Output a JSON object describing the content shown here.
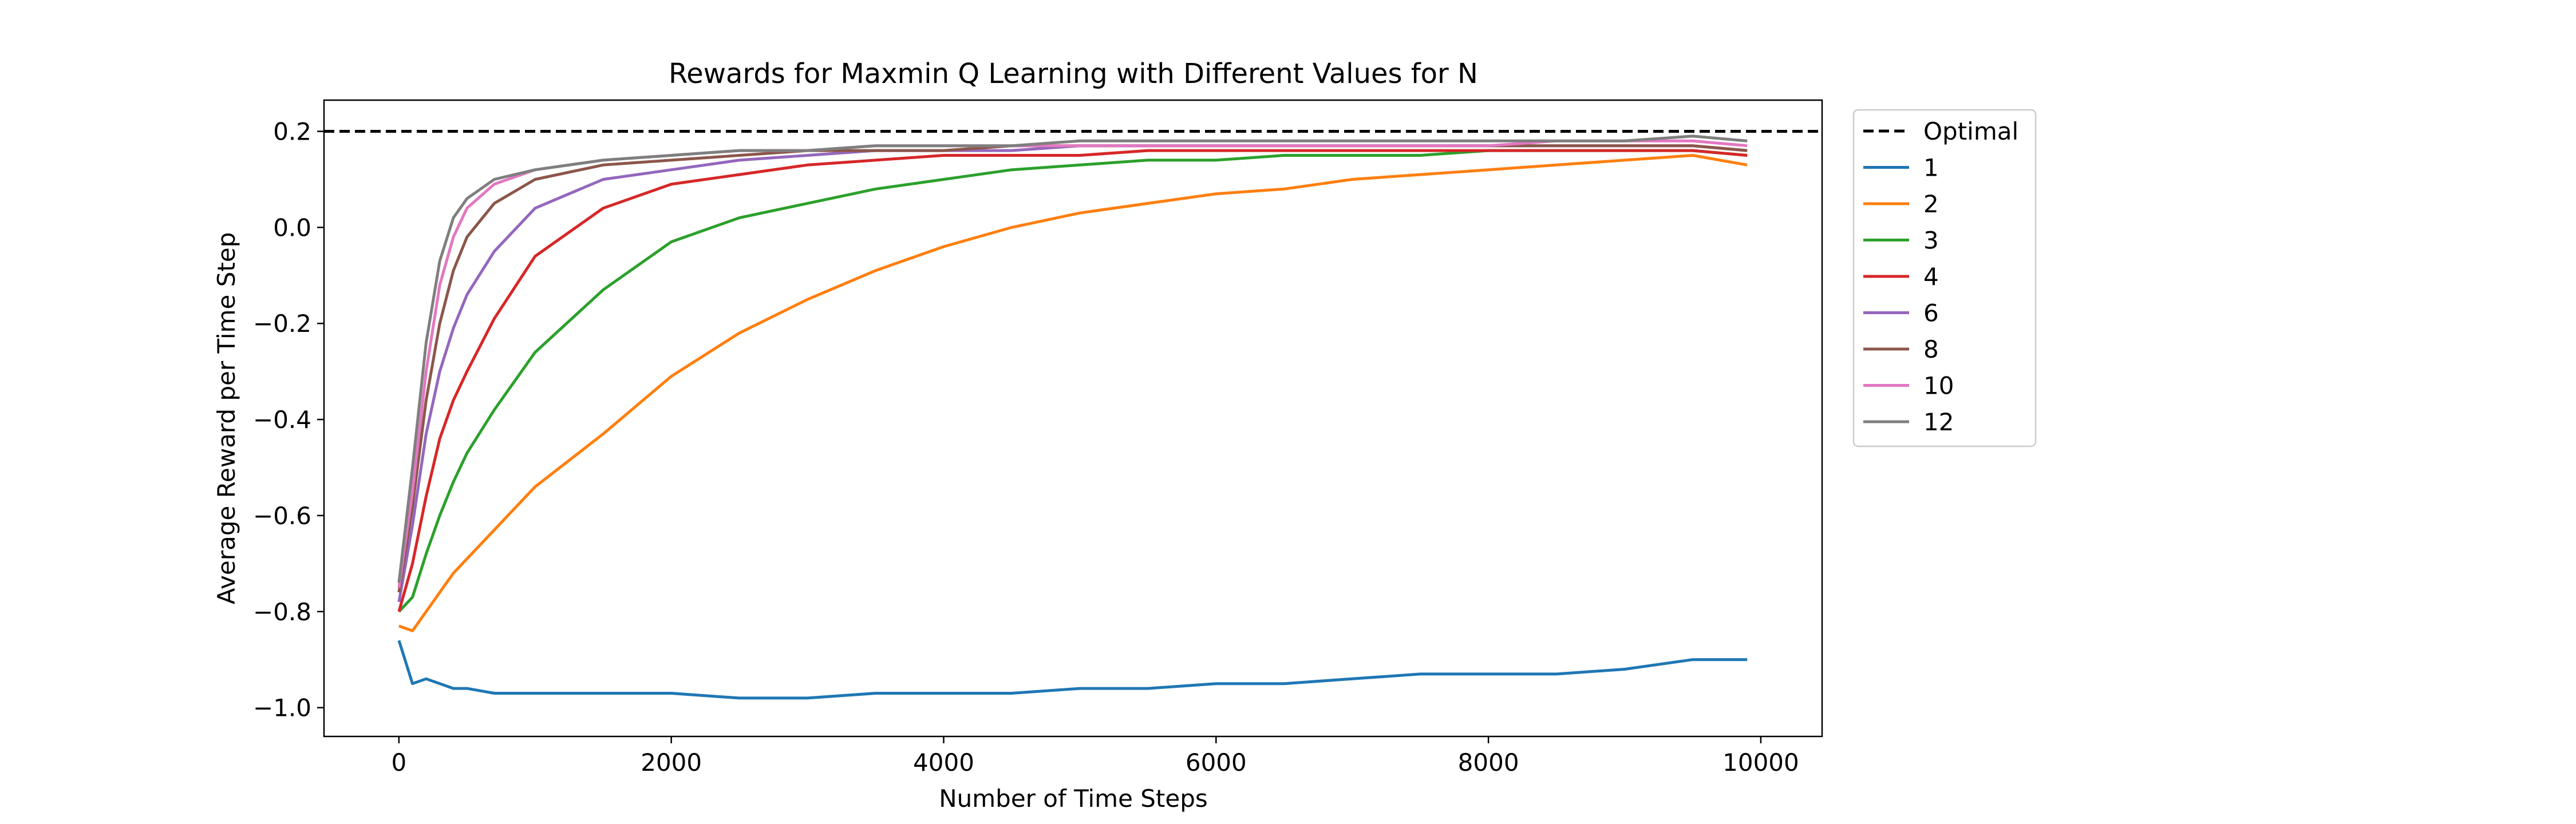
{
  "chart_data": {
    "type": "line",
    "title": "Rewards for Maxmin Q Learning with Different Values for N",
    "xlabel": "Number of Time Steps",
    "ylabel": "Average Reward per Time Step",
    "xlim": [
      -550,
      10450
    ],
    "ylim": [
      -1.06,
      0.265
    ],
    "x_ticks": [
      0,
      2000,
      4000,
      6000,
      8000,
      10000
    ],
    "x_tick_labels": [
      "0",
      "2000",
      "4000",
      "6000",
      "8000",
      "10000"
    ],
    "y_ticks": [
      -1.0,
      -0.8,
      -0.6,
      -0.4,
      -0.2,
      0.0,
      0.2
    ],
    "y_tick_labels": [
      "−1.0",
      "−0.8",
      "−0.6",
      "−0.4",
      "−0.2",
      "0.0",
      "0.2"
    ],
    "grid": false,
    "legend_position": "outside upper-right",
    "reference_line": {
      "name": "Optimal",
      "y": 0.2,
      "color": "#000000",
      "style": "dashed"
    },
    "legend": [
      "Optimal",
      "1",
      "2",
      "3",
      "4",
      "6",
      "8",
      "10",
      "12"
    ],
    "x": [
      0,
      100,
      200,
      300,
      400,
      500,
      700,
      1000,
      1500,
      2000,
      2500,
      3000,
      3500,
      4000,
      4500,
      5000,
      5500,
      6000,
      6500,
      7000,
      7500,
      8000,
      8500,
      9000,
      9500,
      9900
    ],
    "series": [
      {
        "name": "1",
        "color": "#1f77b4",
        "values": [
          -0.86,
          -0.95,
          -0.94,
          -0.95,
          -0.96,
          -0.96,
          -0.97,
          -0.97,
          -0.97,
          -0.97,
          -0.98,
          -0.98,
          -0.97,
          -0.97,
          -0.97,
          -0.96,
          -0.96,
          -0.95,
          -0.95,
          -0.94,
          -0.93,
          -0.93,
          -0.93,
          -0.92,
          -0.9,
          -0.9
        ]
      },
      {
        "name": "2",
        "color": "#ff7f0e",
        "values": [
          -0.83,
          -0.84,
          -0.8,
          -0.76,
          -0.72,
          -0.69,
          -0.63,
          -0.54,
          -0.43,
          -0.31,
          -0.22,
          -0.15,
          -0.09,
          -0.04,
          0.0,
          0.03,
          0.05,
          0.07,
          0.08,
          0.1,
          0.11,
          0.12,
          0.13,
          0.14,
          0.15,
          0.13
        ]
      },
      {
        "name": "3",
        "color": "#2ca02c",
        "values": [
          -0.8,
          -0.77,
          -0.68,
          -0.6,
          -0.53,
          -0.47,
          -0.38,
          -0.26,
          -0.13,
          -0.03,
          0.02,
          0.05,
          0.08,
          0.1,
          0.12,
          0.13,
          0.14,
          0.14,
          0.15,
          0.15,
          0.15,
          0.16,
          0.16,
          0.16,
          0.16,
          0.15
        ]
      },
      {
        "name": "4",
        "color": "#d62728",
        "values": [
          -0.8,
          -0.7,
          -0.56,
          -0.44,
          -0.36,
          -0.3,
          -0.19,
          -0.06,
          0.04,
          0.09,
          0.11,
          0.13,
          0.14,
          0.15,
          0.15,
          0.15,
          0.16,
          0.16,
          0.16,
          0.16,
          0.16,
          0.16,
          0.16,
          0.16,
          0.16,
          0.15
        ]
      },
      {
        "name": "6",
        "color": "#9467bd",
        "values": [
          -0.78,
          -0.62,
          -0.43,
          -0.3,
          -0.21,
          -0.14,
          -0.05,
          0.04,
          0.1,
          0.12,
          0.14,
          0.15,
          0.16,
          0.16,
          0.16,
          0.17,
          0.17,
          0.17,
          0.17,
          0.17,
          0.17,
          0.17,
          0.17,
          0.17,
          0.17,
          0.16
        ]
      },
      {
        "name": "8",
        "color": "#8c564b",
        "values": [
          -0.76,
          -0.58,
          -0.36,
          -0.2,
          -0.09,
          -0.02,
          0.05,
          0.1,
          0.13,
          0.14,
          0.15,
          0.16,
          0.16,
          0.16,
          0.17,
          0.17,
          0.17,
          0.17,
          0.17,
          0.17,
          0.17,
          0.17,
          0.17,
          0.17,
          0.17,
          0.16
        ]
      },
      {
        "name": "10",
        "color": "#e377c2",
        "values": [
          -0.75,
          -0.55,
          -0.3,
          -0.12,
          -0.02,
          0.04,
          0.09,
          0.12,
          0.14,
          0.15,
          0.16,
          0.16,
          0.17,
          0.17,
          0.17,
          0.17,
          0.17,
          0.17,
          0.17,
          0.17,
          0.17,
          0.17,
          0.18,
          0.18,
          0.18,
          0.17
        ]
      },
      {
        "name": "12",
        "color": "#7f7f7f",
        "values": [
          -0.74,
          -0.5,
          -0.24,
          -0.07,
          0.02,
          0.06,
          0.1,
          0.12,
          0.14,
          0.15,
          0.16,
          0.16,
          0.17,
          0.17,
          0.17,
          0.18,
          0.18,
          0.18,
          0.18,
          0.18,
          0.18,
          0.18,
          0.18,
          0.18,
          0.19,
          0.18
        ]
      }
    ]
  }
}
